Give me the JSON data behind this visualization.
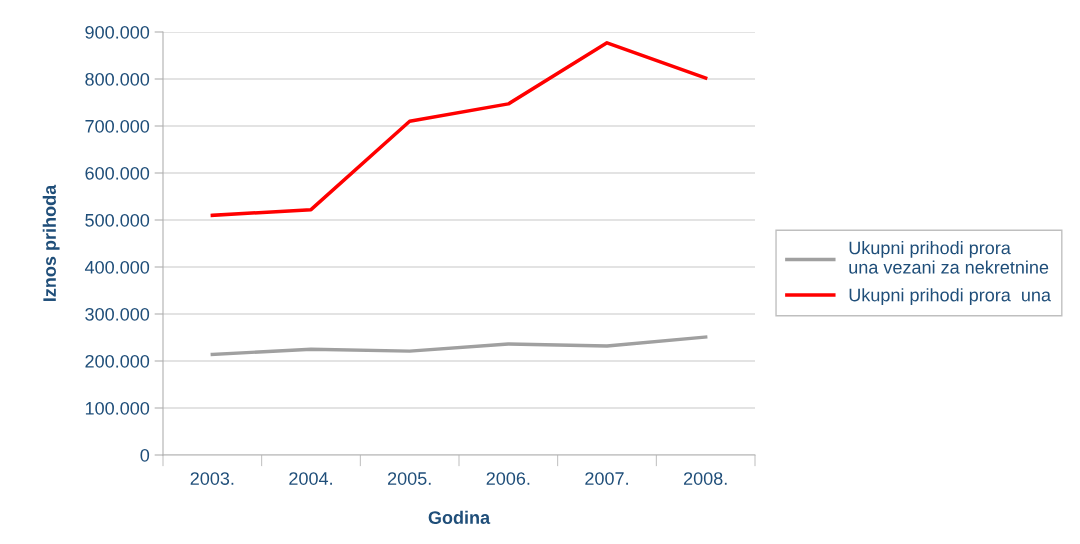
{
  "chart_data": {
    "type": "line",
    "xlabel": "Godina",
    "ylabel": "Iznos prihoda",
    "categories": [
      "2003.",
      "2004.",
      "2005.",
      "2006.",
      "2007.",
      "2008."
    ],
    "series": [
      {
        "name": "Ukupni prihodi prora  una vezani za nekretnine",
        "color": "#a0a0a0",
        "values": [
          214000,
          225000,
          221000,
          236000,
          232000,
          251000
        ]
      },
      {
        "name": "Ukupni prihodi prora  una",
        "color": "#ff0000",
        "values": [
          510000,
          522000,
          710000,
          747000,
          877000,
          802000
        ]
      }
    ],
    "ylim": [
      0,
      900000
    ],
    "yticks": [
      {
        "value": 0,
        "label": "0"
      },
      {
        "value": 100000,
        "label": "100.000"
      },
      {
        "value": 200000,
        "label": "200.000"
      },
      {
        "value": 300000,
        "label": "300.000"
      },
      {
        "value": 400000,
        "label": "400.000"
      },
      {
        "value": 500000,
        "label": "500.000"
      },
      {
        "value": 600000,
        "label": "600.000"
      },
      {
        "value": 700000,
        "label": "700.000"
      },
      {
        "value": 800000,
        "label": "800.000"
      },
      {
        "value": 900000,
        "label": "900.000"
      }
    ],
    "grid": "y",
    "legend": "right",
    "marker": "none",
    "line_style": "solid"
  }
}
